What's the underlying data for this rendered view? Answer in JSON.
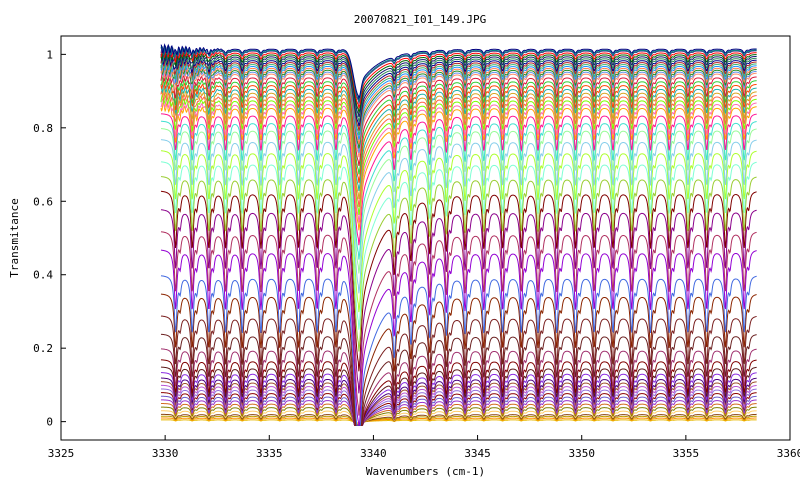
{
  "chart_data": {
    "type": "line",
    "title": "20070821_I01_149.JPG",
    "xlabel": "Wavenumbers (cm-1)",
    "ylabel": "Transmitance",
    "xlim": [
      3325,
      3360
    ],
    "ylim": [
      -0.05,
      1.05
    ],
    "x_ticks": [
      3325,
      3330,
      3335,
      3340,
      3345,
      3350,
      3355,
      3360
    ],
    "y_ticks": [
      0,
      0.2,
      0.4,
      0.6,
      0.8,
      1
    ],
    "x_tick_labels": [
      "3325",
      "3330",
      "3335",
      "3340",
      "3345",
      "3350",
      "3355",
      "3360"
    ],
    "y_tick_labels": [
      "0",
      "0.2",
      "0.4",
      "0.6",
      "0.8",
      "1"
    ],
    "grid": false,
    "legend": "none",
    "x_range_data": [
      3329.8,
      3358.4
    ],
    "absorption_line_positions": [
      3330.5,
      3331.3,
      3332.1,
      3332.9,
      3333.7,
      3334.6,
      3335.5,
      3336.4,
      3337.3,
      3338.2,
      3341.0,
      3341.8,
      3342.7,
      3343.5,
      3344.4,
      3345.3,
      3346.2,
      3347.1,
      3347.9,
      3348.8,
      3349.7,
      3350.6,
      3351.5,
      3352.4,
      3353.3,
      3354.2,
      3355.1,
      3356.0,
      3356.9,
      3357.8
    ],
    "strong_band_center": 3339.3,
    "series_baselines": [
      0.005,
      0.01,
      0.015,
      0.02,
      0.03,
      0.04,
      0.05,
      0.06,
      0.07,
      0.08,
      0.09,
      0.1,
      0.11,
      0.12,
      0.135,
      0.15,
      0.17,
      0.2,
      0.24,
      0.29,
      0.35,
      0.4,
      0.47,
      0.52,
      0.58,
      0.63,
      0.67,
      0.71,
      0.74,
      0.77,
      0.8,
      0.82,
      0.84,
      0.86,
      0.87,
      0.88,
      0.89,
      0.9,
      0.91,
      0.92,
      0.93,
      0.94,
      0.95,
      0.955,
      0.96,
      0.965,
      0.97,
      0.975,
      0.98,
      0.985,
      0.99,
      0.995,
      1.0,
      1.005,
      1.01,
      1.012,
      1.015
    ],
    "series_colors": [
      "#e6b800",
      "#ff8c00",
      "#c0a000",
      "#8b4513",
      "#ffcc66",
      "#808000",
      "#d2691e",
      "#9932cc",
      "#6a5acd",
      "#8b0000",
      "#9370db",
      "#ba55d3",
      "#a0522d",
      "#4b0082",
      "#8a2be2",
      "#5c1a1a",
      "#800000",
      "#a0306e",
      "#6b2020",
      "#7a1f1f",
      "#8b2500",
      "#4169e1",
      "#9400d3",
      "#b03060",
      "#8b008b",
      "#800000",
      "#9acd32",
      "#7fffd4",
      "#adff2f",
      "#87ceeb",
      "#98fb98",
      "#40e0d0",
      "#ff1493",
      "#ffa500",
      "#ff69b4",
      "#7cfc00",
      "#ff6347",
      "#daa520",
      "#20b2aa",
      "#ff4500",
      "#32cd32",
      "#dc143c",
      "#ff8c69",
      "#6495ed",
      "#228b22",
      "#ff7f50",
      "#1e90ff",
      "#3cb371",
      "#b22222",
      "#00008b",
      "#2e8b57",
      "#191970",
      "#006400",
      "#ff0000",
      "#483d8b",
      "#008080",
      "#000080"
    ]
  }
}
